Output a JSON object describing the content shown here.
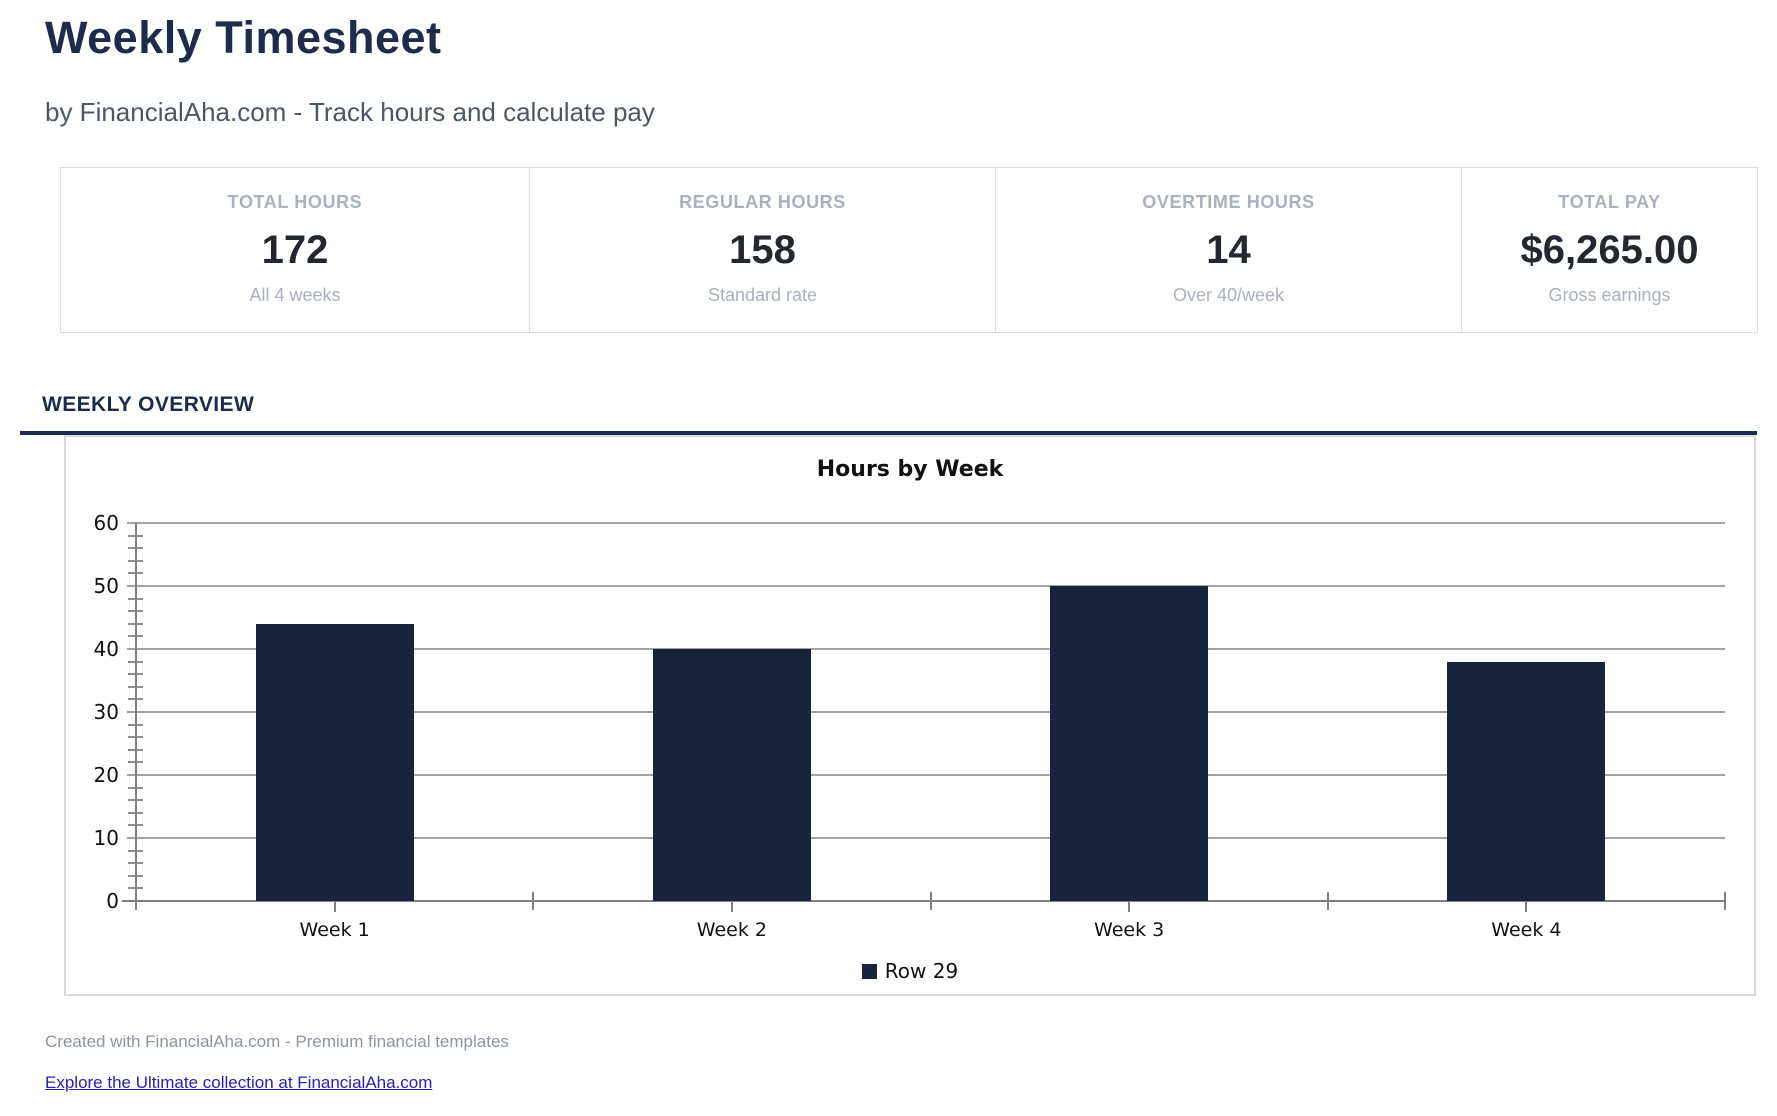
{
  "page": {
    "title": "Weekly Timesheet",
    "subtitle": "by FinancialAha.com - Track hours and calculate pay"
  },
  "stats": {
    "cards": [
      {
        "label": "TOTAL HOURS",
        "value": "172",
        "sub": "All 4 weeks"
      },
      {
        "label": "REGULAR HOURS",
        "value": "158",
        "sub": "Standard rate"
      },
      {
        "label": "OVERTIME HOURS",
        "value": "14",
        "sub": "Over 40/week"
      },
      {
        "label": "TOTAL PAY",
        "value": "$6,265.00",
        "sub": "Gross earnings"
      }
    ]
  },
  "section": {
    "heading": "WEEKLY OVERVIEW"
  },
  "chart_data": {
    "type": "bar",
    "title": "Hours by Week",
    "categories": [
      "Week 1",
      "Week 2",
      "Week 3",
      "Week 4"
    ],
    "values": [
      44,
      40,
      50,
      38
    ],
    "series": [
      {
        "name": "Row 29",
        "values": [
          44,
          40,
          50,
          38
        ]
      }
    ],
    "legend": [
      "Row 29"
    ],
    "legend_position": "bottom-center",
    "xlabel": "",
    "ylabel": "",
    "ylim": [
      0,
      60
    ],
    "ytick_step": 10,
    "minor_tick_step": 2,
    "grid": true,
    "bar_color": "#18243e"
  },
  "footer": {
    "credit": "Created with FinancialAha.com - Premium financial templates",
    "link": "Explore the Ultimate collection at FinancialAha.com"
  },
  "colors": {
    "accent_navy": "#1e2b4b",
    "rule_navy": "#1a2b4d",
    "bar_navy": "#18243e",
    "muted_label": "#a9b0bf",
    "subtitle_gray": "#4d5663",
    "footer_gray": "#8d95a2",
    "link_blue": "#2323b5",
    "gridline_gray": "#a2a2a2",
    "card_border": "#dadde2"
  }
}
